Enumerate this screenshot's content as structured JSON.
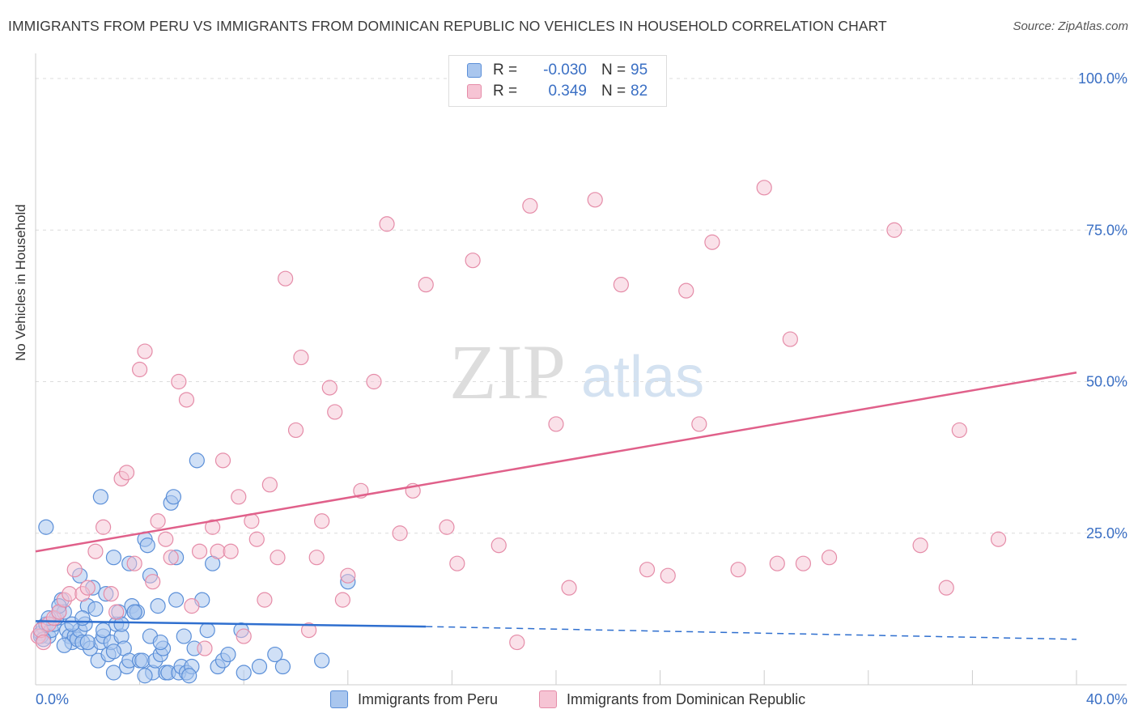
{
  "header": {
    "title": "IMMIGRANTS FROM PERU VS IMMIGRANTS FROM DOMINICAN REPUBLIC NO VEHICLES IN HOUSEHOLD CORRELATION CHART",
    "source": "Source: ZipAtlas.com"
  },
  "watermark": {
    "zip": "ZIP",
    "atlas": "atlas"
  },
  "colors": {
    "peru_fill": "#a9c6ee",
    "peru_stroke": "#5b8fd8",
    "peru_line": "#2f6fcf",
    "dr_fill": "#f6c4d4",
    "dr_stroke": "#e58ca8",
    "dr_line": "#e0608a",
    "axis_text": "#3a6fc4",
    "grid": "#dcdcdc"
  },
  "legend": {
    "rows": [
      {
        "r_label": "R =",
        "r_value": "-0.030",
        "n_label": "N =",
        "n_value": "95"
      },
      {
        "r_label": "R =",
        "r_value": "0.349",
        "n_label": "N =",
        "n_value": "82"
      }
    ]
  },
  "bottom_legend": {
    "peru": "Immigrants from Peru",
    "dr": "Immigrants from Dominican Republic"
  },
  "chart_data": {
    "type": "scatter",
    "title": "IMMIGRANTS FROM PERU VS IMMIGRANTS FROM DOMINICAN REPUBLIC NO VEHICLES IN HOUSEHOLD CORRELATION CHART",
    "xlabel": "",
    "ylabel": "No Vehicles in Household",
    "xlim": [
      0,
      40
    ],
    "ylim": [
      0,
      100
    ],
    "x_tick_labels": [
      "0.0%",
      "40.0%"
    ],
    "y_tick_labels": [
      "100.0%",
      "75.0%",
      "50.0%",
      "25.0%"
    ],
    "y_ticks": [
      100,
      75,
      50,
      25
    ],
    "series": [
      {
        "name": "Immigrants from Peru",
        "R": -0.03,
        "N": 95,
        "trend": {
          "x0": 0,
          "y0": 10.5,
          "x1": 15,
          "y1": 9.6,
          "x_dash_end": 40,
          "y_dash_end": 7.5
        },
        "points": [
          [
            0.2,
            8.5
          ],
          [
            0.3,
            9.5
          ],
          [
            0.4,
            10
          ],
          [
            0.5,
            8
          ],
          [
            0.6,
            9
          ],
          [
            0.7,
            10
          ],
          [
            0.8,
            11
          ],
          [
            0.9,
            12
          ],
          [
            1.0,
            14
          ],
          [
            1.1,
            12
          ],
          [
            1.2,
            9
          ],
          [
            1.3,
            8
          ],
          [
            1.4,
            7
          ],
          [
            1.5,
            8
          ],
          [
            1.6,
            7.5
          ],
          [
            1.7,
            9
          ],
          [
            1.8,
            7
          ],
          [
            1.9,
            10
          ],
          [
            2.0,
            13
          ],
          [
            2.1,
            6
          ],
          [
            2.2,
            16
          ],
          [
            2.3,
            12.5
          ],
          [
            2.4,
            4
          ],
          [
            2.5,
            7
          ],
          [
            2.6,
            8
          ],
          [
            2.7,
            15
          ],
          [
            2.8,
            5
          ],
          [
            2.9,
            7
          ],
          [
            3.0,
            2
          ],
          [
            3.1,
            10
          ],
          [
            3.2,
            12
          ],
          [
            3.3,
            8
          ],
          [
            3.4,
            6
          ],
          [
            3.5,
            3
          ],
          [
            3.6,
            4
          ],
          [
            3.7,
            13
          ],
          [
            3.8,
            12
          ],
          [
            3.9,
            12
          ],
          [
            4.0,
            4
          ],
          [
            4.1,
            4
          ],
          [
            4.2,
            24
          ],
          [
            4.3,
            23
          ],
          [
            4.4,
            8
          ],
          [
            4.5,
            2
          ],
          [
            4.6,
            4
          ],
          [
            4.7,
            13
          ],
          [
            4.8,
            5
          ],
          [
            4.9,
            6
          ],
          [
            5.0,
            2
          ],
          [
            5.1,
            2
          ],
          [
            5.2,
            30
          ],
          [
            5.3,
            31
          ],
          [
            5.4,
            14
          ],
          [
            5.5,
            2
          ],
          [
            5.6,
            3
          ],
          [
            5.7,
            8
          ],
          [
            5.8,
            2
          ],
          [
            6.0,
            3
          ],
          [
            6.2,
            37
          ],
          [
            6.4,
            14
          ],
          [
            6.6,
            9
          ],
          [
            6.8,
            20
          ],
          [
            7.0,
            3
          ],
          [
            7.2,
            4
          ],
          [
            7.4,
            5
          ],
          [
            0.4,
            26
          ],
          [
            1.7,
            18
          ],
          [
            2.5,
            31
          ],
          [
            3.0,
            21
          ],
          [
            3.6,
            20
          ],
          [
            4.4,
            18
          ],
          [
            5.4,
            21
          ],
          [
            8.0,
            2
          ],
          [
            8.6,
            3
          ],
          [
            9.5,
            3
          ],
          [
            11.0,
            4
          ],
          [
            12.0,
            17
          ],
          [
            0.2,
            8
          ],
          [
            0.5,
            11
          ],
          [
            0.9,
            13
          ],
          [
            1.4,
            10
          ],
          [
            1.8,
            11
          ],
          [
            2.6,
            9
          ],
          [
            3.3,
            10
          ],
          [
            3.8,
            12
          ],
          [
            4.8,
            7
          ],
          [
            5.9,
            1.5
          ],
          [
            6.1,
            6
          ],
          [
            7.9,
            9
          ],
          [
            9.2,
            5
          ],
          [
            0.3,
            7.5
          ],
          [
            1.1,
            6.5
          ],
          [
            2.0,
            7
          ],
          [
            3.0,
            5.5
          ],
          [
            4.2,
            1.5
          ]
        ]
      },
      {
        "name": "Immigrants from Dominican Republic",
        "R": 0.349,
        "N": 82,
        "trend": {
          "x0": 0,
          "y0": 22,
          "x1": 40,
          "y1": 51.5
        },
        "points": [
          [
            0.1,
            8
          ],
          [
            0.2,
            9
          ],
          [
            0.3,
            7
          ],
          [
            0.5,
            10
          ],
          [
            0.7,
            11
          ],
          [
            0.9,
            12
          ],
          [
            1.1,
            14
          ],
          [
            1.3,
            15
          ],
          [
            1.5,
            19
          ],
          [
            1.8,
            15
          ],
          [
            2.0,
            16
          ],
          [
            2.3,
            22
          ],
          [
            2.6,
            26
          ],
          [
            2.9,
            15
          ],
          [
            3.1,
            12
          ],
          [
            3.3,
            34
          ],
          [
            3.5,
            35
          ],
          [
            3.8,
            20
          ],
          [
            4.0,
            52
          ],
          [
            4.2,
            55
          ],
          [
            4.5,
            17
          ],
          [
            4.7,
            27
          ],
          [
            5.0,
            24
          ],
          [
            5.2,
            21
          ],
          [
            5.5,
            50
          ],
          [
            5.8,
            47
          ],
          [
            6.0,
            13
          ],
          [
            6.3,
            22
          ],
          [
            6.5,
            6
          ],
          [
            6.8,
            26
          ],
          [
            7.0,
            22
          ],
          [
            7.2,
            37
          ],
          [
            7.5,
            22
          ],
          [
            7.8,
            31
          ],
          [
            8.0,
            8
          ],
          [
            8.3,
            27
          ],
          [
            8.5,
            24
          ],
          [
            8.8,
            14
          ],
          [
            9.0,
            33
          ],
          [
            9.3,
            21
          ],
          [
            9.6,
            67
          ],
          [
            10.0,
            42
          ],
          [
            10.2,
            54
          ],
          [
            10.5,
            9
          ],
          [
            10.8,
            21
          ],
          [
            11.0,
            27
          ],
          [
            11.3,
            49
          ],
          [
            11.5,
            45
          ],
          [
            11.8,
            14
          ],
          [
            12.0,
            18
          ],
          [
            12.5,
            32
          ],
          [
            13.0,
            50
          ],
          [
            13.5,
            76
          ],
          [
            14.0,
            25
          ],
          [
            14.5,
            32
          ],
          [
            15.0,
            66
          ],
          [
            15.8,
            26
          ],
          [
            16.2,
            20
          ],
          [
            16.8,
            70
          ],
          [
            17.8,
            23
          ],
          [
            18.5,
            7
          ],
          [
            19.0,
            79
          ],
          [
            20.0,
            43
          ],
          [
            20.5,
            16
          ],
          [
            21.5,
            80
          ],
          [
            22.5,
            66
          ],
          [
            23.5,
            19
          ],
          [
            24.3,
            18
          ],
          [
            25.0,
            65
          ],
          [
            25.5,
            43
          ],
          [
            26.0,
            73
          ],
          [
            27.0,
            19
          ],
          [
            28.0,
            82
          ],
          [
            28.5,
            20
          ],
          [
            29.0,
            57
          ],
          [
            29.5,
            20
          ],
          [
            30.5,
            21
          ],
          [
            33.0,
            75
          ],
          [
            34.0,
            23
          ],
          [
            35.0,
            16
          ],
          [
            35.5,
            42
          ],
          [
            37.0,
            24
          ]
        ]
      }
    ]
  }
}
